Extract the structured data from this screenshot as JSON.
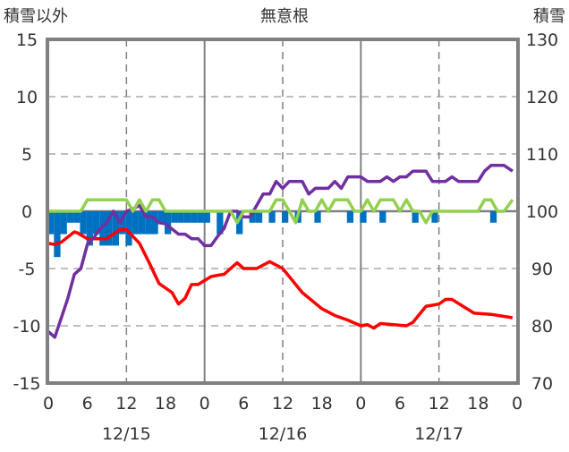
{
  "chart_data": {
    "type": "line",
    "title": "無意根",
    "left_axis_label": "積雪以外",
    "right_axis_label": "積雪",
    "left_ylim": [
      -15,
      15
    ],
    "right_ylim": [
      70,
      130
    ],
    "left_ticks": [
      "15",
      "10",
      "5",
      "0",
      "-5",
      "-10",
      "-15"
    ],
    "right_ticks": [
      "130",
      "120",
      "110",
      "100",
      "90",
      "80",
      "70"
    ],
    "xlim_hours": [
      0,
      72
    ],
    "x_tick_labels": [
      "0",
      "6",
      "12",
      "18",
      "0",
      "6",
      "12",
      "18",
      "0",
      "6",
      "12",
      "18",
      "0"
    ],
    "date_labels": [
      "12/15",
      "12/16",
      "12/17"
    ],
    "colors": {
      "red": "#ff0000",
      "purple": "#7030a0",
      "green": "#92d050",
      "blue": "#0070c0",
      "frame": "#808080"
    },
    "series": [
      {
        "name": "red-line",
        "axis": "left",
        "color": "#ff0000",
        "points": [
          [
            0,
            -2.8
          ],
          [
            1,
            -2.9
          ],
          [
            2,
            -2.7
          ],
          [
            4,
            -1.8
          ],
          [
            4.5,
            -1.9
          ],
          [
            6,
            -2.4
          ],
          [
            9,
            -2.4
          ],
          [
            11,
            -1.6
          ],
          [
            12,
            -1.6
          ],
          [
            14,
            -2.8
          ],
          [
            15.5,
            -4.5
          ],
          [
            17,
            -6.3
          ],
          [
            19,
            -7.1
          ],
          [
            20,
            -8.1
          ],
          [
            21,
            -7.6
          ],
          [
            22,
            -6.4
          ],
          [
            23,
            -6.4
          ],
          [
            25,
            -5.7
          ],
          [
            27,
            -5.5
          ],
          [
            29,
            -4.5
          ],
          [
            30,
            -5.0
          ],
          [
            32,
            -5.0
          ],
          [
            34,
            -4.4
          ],
          [
            36,
            -5.0
          ],
          [
            39,
            -7.1
          ],
          [
            42,
            -8.5
          ],
          [
            44,
            -9.1
          ],
          [
            46,
            -9.5
          ],
          [
            48,
            -10.0
          ],
          [
            49,
            -9.9
          ],
          [
            50,
            -10.2
          ],
          [
            51,
            -9.8
          ],
          [
            55,
            -10.0
          ],
          [
            56,
            -9.7
          ],
          [
            58,
            -8.3
          ],
          [
            60,
            -8.1
          ],
          [
            61,
            -7.7
          ],
          [
            62,
            -7.7
          ],
          [
            65.4,
            -8.9
          ],
          [
            68,
            -9.0
          ],
          [
            71.3,
            -9.3
          ]
        ]
      },
      {
        "name": "purple-line",
        "axis": "right",
        "color": "#7030a0",
        "points": [
          [
            0,
            79
          ],
          [
            1,
            78
          ],
          [
            3,
            84.8
          ],
          [
            4,
            89
          ],
          [
            5,
            90
          ],
          [
            6,
            94.2
          ],
          [
            7,
            95.4
          ],
          [
            8,
            97
          ],
          [
            9,
            98
          ],
          [
            10,
            100
          ],
          [
            11,
            98
          ],
          [
            12,
            100
          ],
          [
            13,
            100.4
          ],
          [
            14,
            101
          ],
          [
            15,
            99
          ],
          [
            16,
            99
          ],
          [
            17,
            98
          ],
          [
            18,
            97.8
          ],
          [
            20,
            96
          ],
          [
            21,
            96
          ],
          [
            22,
            95.2
          ],
          [
            23,
            95.2
          ],
          [
            24,
            94
          ],
          [
            25,
            94
          ],
          [
            26,
            95.6
          ],
          [
            27,
            97
          ],
          [
            28,
            100
          ],
          [
            29,
            100
          ],
          [
            30,
            99
          ],
          [
            31,
            99
          ],
          [
            33,
            103
          ],
          [
            34,
            103
          ],
          [
            35,
            105.2
          ],
          [
            36,
            104
          ],
          [
            37,
            105.2
          ],
          [
            39,
            105.2
          ],
          [
            40,
            103
          ],
          [
            41,
            104
          ],
          [
            43,
            104
          ],
          [
            44,
            105.2
          ],
          [
            45,
            104
          ],
          [
            46,
            106
          ],
          [
            48,
            106
          ],
          [
            49,
            105.2
          ],
          [
            51,
            105.2
          ],
          [
            52,
            106
          ],
          [
            53,
            105.2
          ],
          [
            54,
            106
          ],
          [
            55,
            106
          ],
          [
            56,
            107
          ],
          [
            58,
            107
          ],
          [
            59,
            105.2
          ],
          [
            61,
            105.2
          ],
          [
            62,
            106
          ],
          [
            63,
            105.2
          ],
          [
            66,
            105.2
          ],
          [
            67,
            107
          ],
          [
            68,
            108
          ],
          [
            70,
            108
          ],
          [
            71.3,
            107
          ]
        ]
      },
      {
        "name": "green-line",
        "axis": "left",
        "color": "#92d050",
        "points": [
          [
            0,
            0
          ],
          [
            5,
            0
          ],
          [
            6,
            1
          ],
          [
            12,
            1
          ],
          [
            13,
            0
          ],
          [
            14,
            1
          ],
          [
            15,
            0
          ],
          [
            16,
            1
          ],
          [
            17,
            1
          ],
          [
            18,
            0
          ],
          [
            28,
            0
          ],
          [
            29,
            -1
          ],
          [
            30,
            0
          ],
          [
            34,
            0
          ],
          [
            35,
            1
          ],
          [
            36,
            1
          ],
          [
            38,
            -1
          ],
          [
            39,
            1
          ],
          [
            40,
            0
          ],
          [
            41,
            0
          ],
          [
            42,
            1
          ],
          [
            43,
            0
          ],
          [
            44,
            1
          ],
          [
            46,
            1
          ],
          [
            47,
            0
          ],
          [
            48,
            0
          ],
          [
            49,
            1
          ],
          [
            50,
            0
          ],
          [
            51,
            1
          ],
          [
            53,
            1
          ],
          [
            54,
            0
          ],
          [
            55,
            1
          ],
          [
            56,
            0
          ],
          [
            57,
            0
          ],
          [
            58,
            -1
          ],
          [
            59,
            0
          ],
          [
            66,
            0
          ],
          [
            67,
            1
          ],
          [
            68,
            1
          ],
          [
            69,
            0
          ],
          [
            70,
            0
          ],
          [
            71.3,
            1
          ]
        ]
      },
      {
        "name": "blue-bars",
        "axis": "left",
        "color": "#0070c0",
        "bars": [
          [
            0,
            -2
          ],
          [
            1,
            -4
          ],
          [
            2,
            -2
          ],
          [
            3,
            -1
          ],
          [
            4,
            -1
          ],
          [
            5,
            -2
          ],
          [
            6,
            -3
          ],
          [
            7,
            -2
          ],
          [
            8,
            -3
          ],
          [
            9,
            -3
          ],
          [
            10,
            -3
          ],
          [
            11,
            -2
          ],
          [
            12,
            -3
          ],
          [
            13,
            -2
          ],
          [
            14,
            -2
          ],
          [
            15,
            -2
          ],
          [
            16,
            -2
          ],
          [
            17,
            -1
          ],
          [
            18,
            -2
          ],
          [
            19,
            -1
          ],
          [
            20,
            -1
          ],
          [
            21,
            -1
          ],
          [
            22,
            -1
          ],
          [
            23,
            -1
          ],
          [
            24,
            -1
          ],
          [
            26,
            -2
          ],
          [
            29,
            -2
          ],
          [
            31,
            -1
          ],
          [
            32,
            -1
          ],
          [
            34,
            -1
          ],
          [
            36,
            -1
          ],
          [
            38,
            -1
          ],
          [
            41,
            -1
          ],
          [
            46,
            -1
          ],
          [
            48,
            -1
          ],
          [
            51,
            -1
          ],
          [
            56,
            -1
          ],
          [
            59,
            -1
          ],
          [
            68,
            -1
          ]
        ]
      }
    ]
  }
}
